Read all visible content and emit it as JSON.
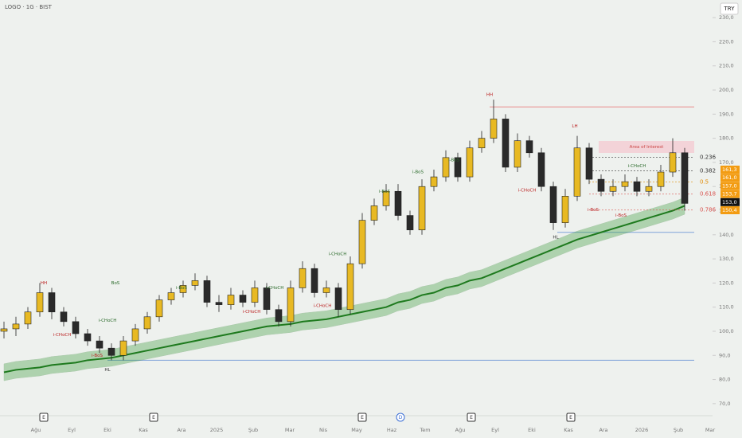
{
  "chart_data": {
    "type": "candlestick",
    "title": "LOGO · 1G · BIST",
    "currency": "TRY",
    "up_color": "#e8b923",
    "down_color": "#2a2a2a",
    "ylim": [
      65,
      235
    ],
    "yticks": [
      {
        "value": 70,
        "label": "70,0"
      },
      {
        "value": 80,
        "label": "80,0"
      },
      {
        "value": 90,
        "label": "90,0"
      },
      {
        "value": 100,
        "label": "100,0"
      },
      {
        "value": 110,
        "label": "110,0"
      },
      {
        "value": 120,
        "label": "120,0"
      },
      {
        "value": 130,
        "label": "130,0"
      },
      {
        "value": 140,
        "label": "140,0"
      },
      {
        "value": 150,
        "label": "150,0"
      },
      {
        "value": 160,
        "label": "160,0"
      },
      {
        "value": 170,
        "label": "170,0"
      },
      {
        "value": 180,
        "label": "180,0"
      },
      {
        "value": 190,
        "label": "190,0"
      },
      {
        "value": 200,
        "label": "200,0"
      },
      {
        "value": 210,
        "label": "210,0"
      },
      {
        "value": 220,
        "label": "220,0"
      },
      {
        "value": 230,
        "label": "230,0"
      }
    ],
    "x_labels": [
      "Ağu",
      "Eyl",
      "Eki",
      "Kas",
      "Ara",
      "2025",
      "Şub",
      "Mar",
      "Nis",
      "May",
      "Haz",
      "Tem",
      "Ağu",
      "Eyl",
      "Eki",
      "Kas",
      "Ara",
      "2026",
      "Şub",
      "Mar"
    ],
    "open": [
      100,
      101,
      103,
      108,
      116,
      108,
      104,
      99,
      96,
      93,
      90,
      96,
      101,
      106,
      113,
      116,
      119,
      121,
      112,
      111,
      115,
      112,
      118,
      109,
      104,
      118,
      126,
      116,
      118,
      109,
      128,
      146,
      152,
      158,
      148,
      142,
      160,
      164,
      172,
      164,
      176,
      180,
      188,
      168,
      179,
      174,
      160,
      145,
      156,
      176,
      163,
      158,
      160,
      162,
      158,
      160,
      166,
      174
    ],
    "high": [
      104,
      106,
      110,
      120,
      118,
      110,
      106,
      101,
      98,
      95,
      98,
      103,
      108,
      115,
      118,
      121,
      124,
      123,
      115,
      118,
      117,
      121,
      120,
      111,
      121,
      129,
      128,
      121,
      120,
      131,
      149,
      155,
      161,
      161,
      150,
      163,
      167,
      175,
      174,
      179,
      183,
      196,
      190,
      182,
      181,
      176,
      162,
      159,
      181,
      178,
      165,
      163,
      165,
      164,
      163,
      169,
      180,
      176
    ],
    "low": [
      97,
      98,
      101,
      106,
      105,
      102,
      97,
      94,
      91,
      88,
      88,
      94,
      99,
      104,
      111,
      114,
      117,
      110,
      108,
      109,
      110,
      110,
      107,
      102,
      102,
      116,
      114,
      114,
      106,
      107,
      126,
      144,
      150,
      146,
      140,
      140,
      158,
      162,
      162,
      162,
      174,
      178,
      166,
      166,
      172,
      158,
      142,
      143,
      154,
      161,
      156,
      156,
      158,
      156,
      156,
      158,
      164,
      150
    ],
    "close": [
      101,
      103,
      108,
      116,
      108,
      104,
      99,
      96,
      93,
      90,
      96,
      101,
      106,
      113,
      116,
      119,
      121,
      112,
      111,
      115,
      112,
      118,
      109,
      104,
      118,
      126,
      116,
      118,
      109,
      128,
      146,
      152,
      158,
      148,
      142,
      160,
      164,
      172,
      164,
      176,
      180,
      188,
      168,
      179,
      174,
      160,
      145,
      156,
      176,
      163,
      158,
      160,
      162,
      158,
      160,
      166,
      174,
      153
    ],
    "ma": {
      "color": "#1e7a1e",
      "values": [
        83,
        84,
        84.5,
        85,
        86,
        86.5,
        87,
        88,
        88.5,
        89,
        90,
        91,
        92,
        93,
        94,
        95,
        96,
        97,
        98,
        99,
        100,
        101,
        102,
        102.5,
        103,
        104,
        104.5,
        105,
        106,
        107,
        108,
        109,
        110,
        112,
        113,
        115,
        116,
        118,
        119,
        121,
        122,
        124,
        126,
        128,
        130,
        132,
        134,
        136,
        138,
        139.5,
        141,
        142.5,
        144,
        145.5,
        147,
        148.5,
        150,
        152
      ]
    },
    "levels": [
      {
        "value": 193,
        "color": "#e88a8a"
      },
      {
        "value": 88,
        "color": "#7fa3d9"
      },
      {
        "value": 141,
        "color": "#7fa3d9"
      }
    ],
    "fib": [
      {
        "label": "0.236",
        "value": 172.1,
        "color": "#333"
      },
      {
        "label": "0.382",
        "value": 166.5,
        "color": "#333"
      },
      {
        "label": "0.5",
        "value": 161.9,
        "color": "#e08a00"
      },
      {
        "label": "0.618",
        "value": 156.9,
        "color": "#d9534f"
      },
      {
        "label": "0.786",
        "value": 150.3,
        "color": "#d9534f"
      }
    ],
    "price_labels": [
      {
        "value": 161.3,
        "label": "161,3",
        "color": "#f39c12"
      },
      {
        "value": 161.0,
        "label": "161,0",
        "color": "#f39c12"
      },
      {
        "value": 157.0,
        "label": "157,0",
        "color": "#f39c12"
      },
      {
        "value": 153.7,
        "label": "153,7",
        "color": "#f39c12"
      },
      {
        "value": 153.0,
        "label": "153,0",
        "color": "#111"
      },
      {
        "value": 150.4,
        "label": "150,4",
        "color": "#f39c12"
      }
    ],
    "annotations": [
      {
        "text": "HH",
        "value": 120,
        "color": "#b22"
      },
      {
        "text": "BoS",
        "value": 120,
        "color": "#2a6a2a"
      },
      {
        "text": "i-BoS",
        "value": 118,
        "color": "#2a6a2a"
      },
      {
        "text": "i-CHoCH",
        "value": 104.5,
        "color": "#2a6a2a"
      },
      {
        "text": "i-CHoCH",
        "value": 98.5,
        "color": "#b22"
      },
      {
        "text": "i-BoS",
        "value": 90,
        "color": "#b22"
      },
      {
        "text": "HL",
        "value": 84,
        "color": "#333"
      },
      {
        "text": "i-CHoCH",
        "value": 118,
        "color": "#2a6a2a"
      },
      {
        "text": "i-CHoCH",
        "value": 108,
        "color": "#b22"
      },
      {
        "text": "i-CHoCH",
        "value": 132,
        "color": "#2a6a2a"
      },
      {
        "text": "i-CHoCH",
        "value": 110.5,
        "color": "#b22"
      },
      {
        "text": "i-BoS",
        "value": 158,
        "color": "#2a6a2a"
      },
      {
        "text": "i-BoS",
        "value": 166,
        "color": "#2a6a2a"
      },
      {
        "text": "i-BoS",
        "value": 171,
        "color": "#2a6a2a"
      },
      {
        "text": "HH",
        "value": 198,
        "color": "#b22"
      },
      {
        "text": "i-CHoCH",
        "value": 158.5,
        "color": "#b22"
      },
      {
        "text": "LH",
        "value": 185,
        "color": "#b22"
      },
      {
        "text": "i-CHoCH",
        "value": 168.5,
        "color": "#2a6a2a"
      },
      {
        "text": "i-BoS",
        "value": 150.3,
        "color": "#b22"
      },
      {
        "text": "i-BoS",
        "value": 148,
        "color": "#b22"
      },
      {
        "text": "HL",
        "value": 139,
        "color": "#333"
      },
      {
        "text": "Area of Interest",
        "value": 176.4,
        "color": "#c44"
      }
    ],
    "events": [
      "E",
      "E",
      "E",
      "D",
      "E",
      "E"
    ]
  }
}
